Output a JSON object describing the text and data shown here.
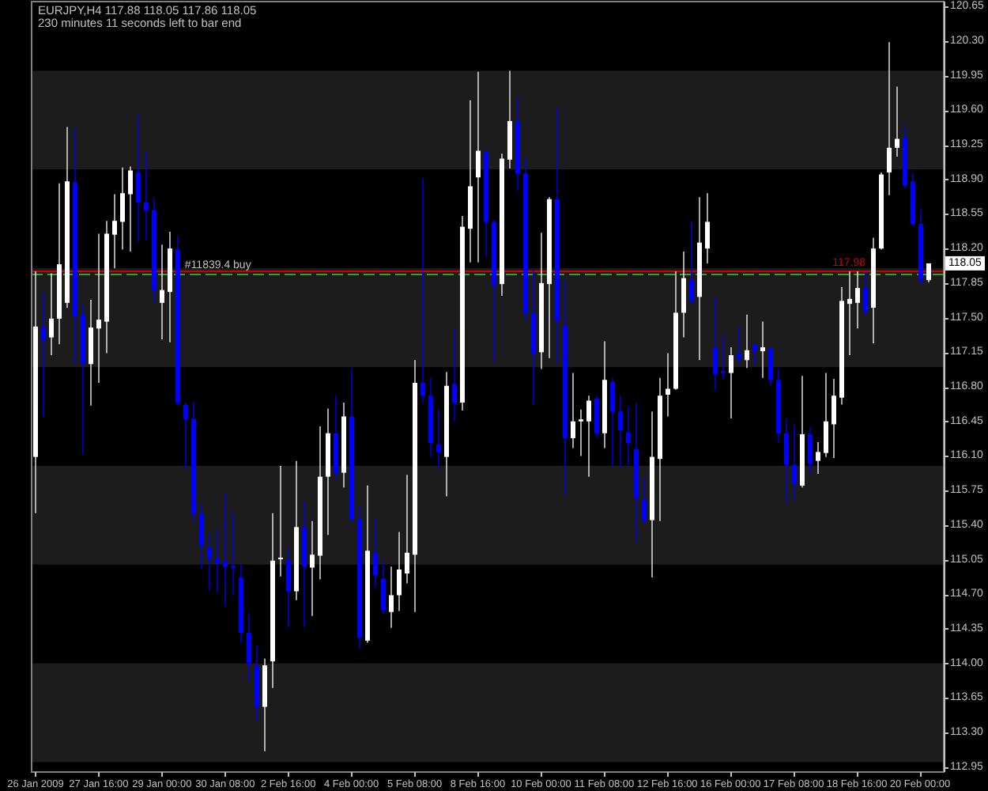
{
  "chart_data": {
    "type": "candlestick",
    "title": "EURJPY,H4 117.88 118.05 117.86 118.05",
    "subtitle": "230 minutes 11 seconds left to bar end",
    "categories": [
      "26 Jan 2009",
      null,
      null,
      null,
      null,
      null,
      null,
      null,
      "27 Jan 16:00",
      null,
      null,
      null,
      null,
      null,
      null,
      null,
      "29 Jan 00:00",
      null,
      null,
      null,
      null,
      null,
      null,
      null,
      "30 Jan 08:00",
      null,
      null,
      null,
      null,
      null,
      null,
      null,
      "2 Feb 16:00",
      null,
      null,
      null,
      null,
      null,
      null,
      null,
      "4 Feb 00:00",
      null,
      null,
      null,
      null,
      null,
      null,
      null,
      "5 Feb 08:00",
      null,
      null,
      null,
      null,
      null,
      null,
      null,
      "8 Feb 16:00",
      null,
      null,
      null,
      null,
      null,
      null,
      null,
      "10 Feb 00:00",
      null,
      null,
      null,
      null,
      null,
      null,
      null,
      "11 Feb 08:00",
      null,
      null,
      null,
      null,
      null,
      null,
      null,
      "12 Feb 16:00",
      null,
      null,
      null,
      null,
      null,
      null,
      null,
      "16 Feb 00:00",
      null,
      null,
      null,
      null,
      null,
      null,
      null,
      "17 Feb 08:00",
      null,
      null,
      null,
      null,
      null,
      null,
      null,
      "18 Feb 16:00",
      null,
      null,
      null,
      null,
      null,
      null,
      null,
      "20 Feb 00:00",
      null
    ],
    "ohlc": [
      [
        116.09,
        117.97,
        115.52,
        117.41
      ],
      [
        117.41,
        117.76,
        116.5,
        117.28
      ],
      [
        117.3,
        117.95,
        117.12,
        117.49
      ],
      [
        117.49,
        118.86,
        117.23,
        118.04
      ],
      [
        117.65,
        119.43,
        117.6,
        118.88
      ],
      [
        118.87,
        119.43,
        117.04,
        117.52
      ],
      [
        117.53,
        117.65,
        116.12,
        117.04
      ],
      [
        117.03,
        117.68,
        116.61,
        117.4
      ],
      [
        117.39,
        118.35,
        116.84,
        117.48
      ],
      [
        117.46,
        118.48,
        117.14,
        118.35
      ],
      [
        118.34,
        118.75,
        118.0,
        118.48
      ],
      [
        118.47,
        119.02,
        118.19,
        118.76
      ],
      [
        118.75,
        119.03,
        118.17,
        118.99
      ],
      [
        118.97,
        119.56,
        118.27,
        118.67
      ],
      [
        118.67,
        119.18,
        118.29,
        118.59
      ],
      [
        118.59,
        118.72,
        117.64,
        117.78
      ],
      [
        117.65,
        118.24,
        117.28,
        117.78
      ],
      [
        117.76,
        118.37,
        117.25,
        118.2
      ],
      [
        118.19,
        118.33,
        116.62,
        116.64
      ],
      [
        116.62,
        116.64,
        115.97,
        116.48
      ],
      [
        116.48,
        116.65,
        115.44,
        115.52
      ],
      [
        115.52,
        115.63,
        114.96,
        115.2
      ],
      [
        115.18,
        115.33,
        114.74,
        115.06
      ],
      [
        115.06,
        115.36,
        114.72,
        115.02
      ],
      [
        115.03,
        115.73,
        114.58,
        114.98
      ],
      [
        114.99,
        115.54,
        114.69,
        114.97
      ],
      [
        114.87,
        115.01,
        114.21,
        114.31
      ],
      [
        114.31,
        114.5,
        113.83,
        114.0
      ],
      [
        113.98,
        114.18,
        113.41,
        113.56
      ],
      [
        113.56,
        114.05,
        113.11,
        113.98
      ],
      [
        114.02,
        115.52,
        113.75,
        115.04
      ],
      [
        115.06,
        116.0,
        114.88,
        115.07
      ],
      [
        115.05,
        115.17,
        114.37,
        114.73
      ],
      [
        114.73,
        116.05,
        114.64,
        115.38
      ],
      [
        115.38,
        115.65,
        114.37,
        114.98
      ],
      [
        114.97,
        115.44,
        114.48,
        115.1
      ],
      [
        115.09,
        116.4,
        114.85,
        115.89
      ],
      [
        115.89,
        116.58,
        115.3,
        116.33
      ],
      [
        116.33,
        116.71,
        115.86,
        115.93
      ],
      [
        115.93,
        116.64,
        115.78,
        116.5
      ],
      [
        116.5,
        116.99,
        115.44,
        115.46
      ],
      [
        115.46,
        115.6,
        114.15,
        114.26
      ],
      [
        114.23,
        115.8,
        114.21,
        115.14
      ],
      [
        115.12,
        115.46,
        114.77,
        114.89
      ],
      [
        114.86,
        115.04,
        114.5,
        114.54
      ],
      [
        114.52,
        114.98,
        114.36,
        114.69
      ],
      [
        114.69,
        115.33,
        114.53,
        114.95
      ],
      [
        114.91,
        115.91,
        114.81,
        115.12
      ],
      [
        115.1,
        117.07,
        114.52,
        116.84
      ],
      [
        116.84,
        118.91,
        116.64,
        116.71
      ],
      [
        116.71,
        116.89,
        116.09,
        116.23
      ],
      [
        116.22,
        116.57,
        115.97,
        116.14
      ],
      [
        116.09,
        116.95,
        115.69,
        116.81
      ],
      [
        116.83,
        117.39,
        116.45,
        116.64
      ],
      [
        116.64,
        118.53,
        116.56,
        118.42
      ],
      [
        118.4,
        119.7,
        118.06,
        118.83
      ],
      [
        118.92,
        119.99,
        118.06,
        119.19
      ],
      [
        119.18,
        119.2,
        118.12,
        118.47
      ],
      [
        118.47,
        118.49,
        117.05,
        117.83
      ],
      [
        117.84,
        119.16,
        117.72,
        119.11
      ],
      [
        119.1,
        120.0,
        119.01,
        119.49
      ],
      [
        119.49,
        119.74,
        118.79,
        118.96
      ],
      [
        118.96,
        119.12,
        117.47,
        117.55
      ],
      [
        117.55,
        117.99,
        116.62,
        117.14
      ],
      [
        117.15,
        118.36,
        116.98,
        117.85
      ],
      [
        117.84,
        118.72,
        117.09,
        118.7
      ],
      [
        118.7,
        119.63,
        117.04,
        117.47
      ],
      [
        117.42,
        117.89,
        115.7,
        116.28
      ],
      [
        116.28,
        116.94,
        116.18,
        116.45
      ],
      [
        116.45,
        116.57,
        116.1,
        116.47
      ],
      [
        116.45,
        116.71,
        115.89,
        116.66
      ],
      [
        116.68,
        116.71,
        116.29,
        116.33
      ],
      [
        116.33,
        117.26,
        116.18,
        116.87
      ],
      [
        116.85,
        116.89,
        116.0,
        116.55
      ],
      [
        116.55,
        116.71,
        115.98,
        116.36
      ],
      [
        116.34,
        116.61,
        116.01,
        116.23
      ],
      [
        116.17,
        116.64,
        115.23,
        115.68
      ],
      [
        115.66,
        115.89,
        115.41,
        115.45
      ],
      [
        115.45,
        116.55,
        114.87,
        116.09
      ],
      [
        116.07,
        116.89,
        115.44,
        116.71
      ],
      [
        116.72,
        117.14,
        116.5,
        116.78
      ],
      [
        116.78,
        117.97,
        116.77,
        117.55
      ],
      [
        117.55,
        118.17,
        117.3,
        117.9
      ],
      [
        117.89,
        118.48,
        117.64,
        117.67
      ],
      [
        117.71,
        118.72,
        117.07,
        118.26
      ],
      [
        118.2,
        118.76,
        118.05,
        118.47
      ],
      [
        117.2,
        117.71,
        116.77,
        116.93
      ],
      [
        116.96,
        117.33,
        116.88,
        116.94
      ],
      [
        116.94,
        117.2,
        116.48,
        117.12
      ],
      [
        117.14,
        117.42,
        117.04,
        117.08
      ],
      [
        117.07,
        117.53,
        116.99,
        117.17
      ],
      [
        117.23,
        117.24,
        117.04,
        117.17
      ],
      [
        117.16,
        117.46,
        116.89,
        117.2
      ],
      [
        117.2,
        117.2,
        116.81,
        116.87
      ],
      [
        116.87,
        116.99,
        116.24,
        116.33
      ],
      [
        116.33,
        116.48,
        115.62,
        116.01
      ],
      [
        116.01,
        116.42,
        115.65,
        115.82
      ],
      [
        115.8,
        116.91,
        115.78,
        116.32
      ],
      [
        116.32,
        116.39,
        115.92,
        116.02
      ],
      [
        116.05,
        116.24,
        115.92,
        116.14
      ],
      [
        116.13,
        116.94,
        116.09,
        116.45
      ],
      [
        116.42,
        116.88,
        116.08,
        116.71
      ],
      [
        116.69,
        117.81,
        116.62,
        117.67
      ],
      [
        117.64,
        117.97,
        117.12,
        117.69
      ],
      [
        117.65,
        117.97,
        117.39,
        117.8
      ],
      [
        117.81,
        117.96,
        117.52,
        117.57
      ],
      [
        117.6,
        118.31,
        117.24,
        118.2
      ],
      [
        118.2,
        118.97,
        118.19,
        118.95
      ],
      [
        118.97,
        120.29,
        118.74,
        119.22
      ],
      [
        119.22,
        119.84,
        119.13,
        119.31
      ],
      [
        119.33,
        119.45,
        118.81,
        118.84
      ],
      [
        118.88,
        118.97,
        118.44,
        118.45
      ],
      [
        118.45,
        118.6,
        117.84,
        117.88
      ],
      [
        117.88,
        118.05,
        117.86,
        118.05
      ]
    ],
    "colors": [
      "#ffffff",
      "#0000ff",
      "#ffffff",
      "#ffffff",
      "#ffffff",
      "#0000ff",
      "#0000ff",
      "#ffffff",
      "#ffffff",
      "#ffffff",
      "#ffffff",
      "#ffffff",
      "#ffffff",
      "#0000ff",
      "#0000ff",
      "#0000ff",
      "#ffffff",
      "#ffffff",
      "#0000ff",
      "#0000ff",
      "#0000ff",
      "#0000ff",
      "#0000ff",
      "#0000ff",
      "#0000ff",
      "#0000ff",
      "#0000ff",
      "#0000ff",
      "#0000ff",
      "#ffffff",
      "#ffffff",
      "#ffffff",
      "#0000ff",
      "#ffffff",
      "#0000ff",
      "#ffffff",
      "#ffffff",
      "#ffffff",
      "#0000ff",
      "#ffffff",
      "#0000ff",
      "#0000ff",
      "#ffffff",
      "#0000ff",
      "#0000ff",
      "#ffffff",
      "#ffffff",
      "#ffffff",
      "#ffffff",
      "#0000ff",
      "#0000ff",
      "#0000ff",
      "#ffffff",
      "#0000ff",
      "#ffffff",
      "#ffffff",
      "#ffffff",
      "#0000ff",
      "#0000ff",
      "#ffffff",
      "#ffffff",
      "#0000ff",
      "#0000ff",
      "#0000ff",
      "#ffffff",
      "#ffffff",
      "#0000ff",
      "#0000ff",
      "#ffffff",
      "#ffffff",
      "#ffffff",
      "#0000ff",
      "#ffffff",
      "#0000ff",
      "#0000ff",
      "#0000ff",
      "#0000ff",
      "#0000ff",
      "#ffffff",
      "#ffffff",
      "#ffffff",
      "#ffffff",
      "#ffffff",
      "#0000ff",
      "#ffffff",
      "#ffffff",
      "#0000ff",
      "#0000ff",
      "#ffffff",
      "#0000ff",
      "#ffffff",
      "#0000ff",
      "#ffffff",
      "#0000ff",
      "#0000ff",
      "#0000ff",
      "#0000ff",
      "#ffffff",
      "#0000ff",
      "#ffffff",
      "#ffffff",
      "#ffffff",
      "#ffffff",
      "#ffffff",
      "#ffffff",
      "#0000ff",
      "#ffffff",
      "#ffffff",
      "#ffffff",
      "#ffffff",
      "#0000ff",
      "#0000ff",
      "#0000ff",
      "#ffffff"
    ],
    "ylim": [
      112.9,
      120.7
    ],
    "yticks": [
      120.65,
      {
        "value": 120.3,
        "label": "120.30"
      },
      119.95,
      {
        "value": 119.6,
        "label": "119.60"
      },
      119.25,
      {
        "value": 118.9,
        "label": "118.90"
      },
      118.55,
      {
        "value": 118.2,
        "label": "118.20"
      },
      117.85,
      {
        "value": 117.5,
        "label": "117.50"
      },
      117.15,
      {
        "value": 116.8,
        "label": "116.80"
      },
      116.45,
      {
        "value": 116.1,
        "label": "116.10"
      },
      115.75,
      {
        "value": 115.4,
        "label": "115.40"
      },
      115.05,
      {
        "value": 114.7,
        "label": "114.70"
      },
      114.35,
      {
        "value": 114,
        "label": "114.00"
      },
      113.65,
      {
        "value": 113.3,
        "label": "113.30"
      },
      112.95
    ],
    "bands": [
      {
        "axis": "y",
        "from": 119,
        "to": 120,
        "color": "#1c1c1c"
      },
      {
        "axis": "y",
        "from": 117,
        "to": 118,
        "color": "#1c1c1c"
      },
      {
        "axis": "y",
        "from": 115,
        "to": 116,
        "color": "#1c1c1c"
      },
      {
        "axis": "y",
        "from": 113,
        "to": 114,
        "color": "#1c1c1c"
      }
    ],
    "ref_lines": [
      {
        "axis": "y",
        "value": 117.95,
        "label": "#11839.4 buy",
        "color": "#33a033",
        "line_style": "dashed"
      },
      {
        "axis": "y",
        "value": 117.98,
        "label": "117.98",
        "color": "#cc0000"
      }
    ],
    "annotations": [
      {
        "text": "118.05",
        "y": 118.05
      }
    ]
  }
}
